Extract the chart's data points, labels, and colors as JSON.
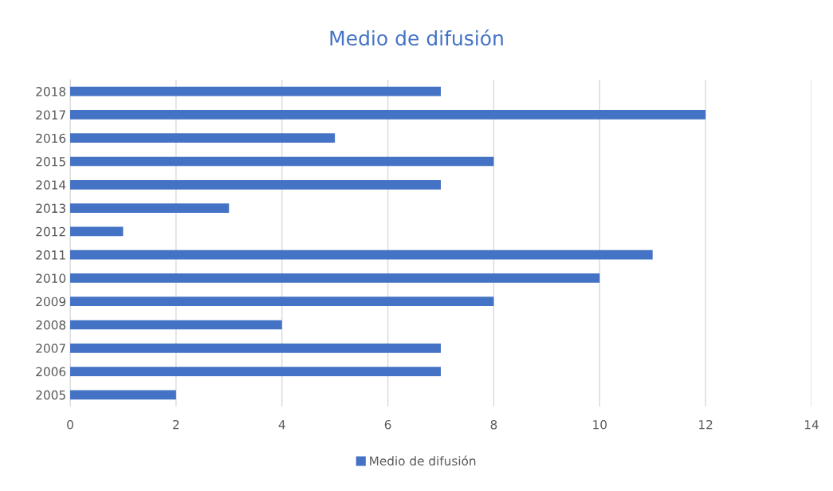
{
  "chart_data": {
    "type": "bar",
    "orientation": "horizontal",
    "title": "Medio de difusión",
    "categories": [
      "2018",
      "2017",
      "2016",
      "2015",
      "2014",
      "2013",
      "2012",
      "2011",
      "2010",
      "2009",
      "2008",
      "2007",
      "2006",
      "2005"
    ],
    "series": [
      {
        "name": "Medio de difusión",
        "color": "#4472c4",
        "values": [
          7,
          12,
          5,
          8,
          7,
          3,
          1,
          11,
          10,
          8,
          4,
          7,
          7,
          2
        ]
      }
    ],
    "xlim": [
      0,
      14
    ],
    "xticks": [
      0,
      2,
      4,
      6,
      8,
      10,
      12,
      14
    ],
    "grid": "x",
    "legend": "bottom"
  }
}
